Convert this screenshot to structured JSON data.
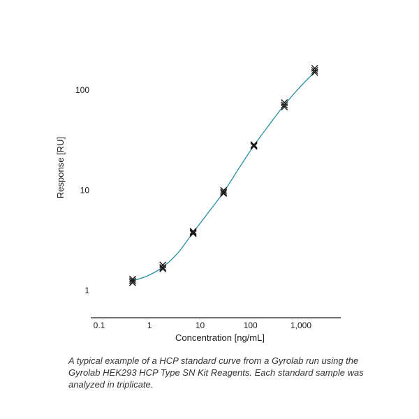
{
  "chart_data": {
    "type": "scatter",
    "title": "",
    "xlabel": "Concentration [ng/mL]",
    "ylabel": "Response [RU]",
    "xscale": "log",
    "yscale": "log",
    "xlim": [
      0.1,
      7000
    ],
    "ylim": [
      0.8,
      170
    ],
    "grid": false,
    "x_ticks": [
      {
        "value": 0.1,
        "label": "0.1"
      },
      {
        "value": 1,
        "label": "1"
      },
      {
        "value": 10,
        "label": "10"
      },
      {
        "value": 100,
        "label": "100"
      },
      {
        "value": 1000,
        "label": "1,000"
      }
    ],
    "y_ticks": [
      {
        "value": 1,
        "label": "1"
      },
      {
        "value": 10,
        "label": "10"
      },
      {
        "value": 100,
        "label": "100"
      }
    ],
    "series": [
      {
        "marker": "x",
        "color": "#1a1a1a",
        "points": [
          {
            "x": 0.46,
            "y": 1.2
          },
          {
            "x": 0.46,
            "y": 1.25
          },
          {
            "x": 0.46,
            "y": 1.3
          },
          {
            "x": 1.83,
            "y": 1.65
          },
          {
            "x": 1.83,
            "y": 1.7
          },
          {
            "x": 1.83,
            "y": 1.8
          },
          {
            "x": 7.3,
            "y": 3.7
          },
          {
            "x": 7.3,
            "y": 3.8
          },
          {
            "x": 7.3,
            "y": 3.9
          },
          {
            "x": 29.3,
            "y": 9.3
          },
          {
            "x": 29.3,
            "y": 9.6
          },
          {
            "x": 29.3,
            "y": 10.0
          },
          {
            "x": 117,
            "y": 27.5
          },
          {
            "x": 117,
            "y": 28.0
          },
          {
            "x": 117,
            "y": 28.5
          },
          {
            "x": 469,
            "y": 68
          },
          {
            "x": 469,
            "y": 71
          },
          {
            "x": 469,
            "y": 75
          },
          {
            "x": 1875,
            "y": 150
          },
          {
            "x": 1875,
            "y": 157
          },
          {
            "x": 1875,
            "y": 165
          }
        ]
      },
      {
        "type": "line",
        "color": "#2b8fa3",
        "points": [
          {
            "x": 0.46,
            "y": 1.25
          },
          {
            "x": 0.9,
            "y": 1.4
          },
          {
            "x": 1.83,
            "y": 1.72
          },
          {
            "x": 3.7,
            "y": 2.4
          },
          {
            "x": 7.3,
            "y": 3.8
          },
          {
            "x": 14.6,
            "y": 6.0
          },
          {
            "x": 29.3,
            "y": 9.6
          },
          {
            "x": 58.6,
            "y": 16.5
          },
          {
            "x": 117,
            "y": 28
          },
          {
            "x": 234,
            "y": 45
          },
          {
            "x": 469,
            "y": 71
          },
          {
            "x": 938,
            "y": 106
          },
          {
            "x": 1875,
            "y": 152
          }
        ]
      }
    ]
  },
  "caption": "A typical example of a HCP standard curve from a Gyrolab run using the Gyrolab HEK293 HCP Type SN Kit Reagents. Each standard sample was analyzed in triplicate."
}
